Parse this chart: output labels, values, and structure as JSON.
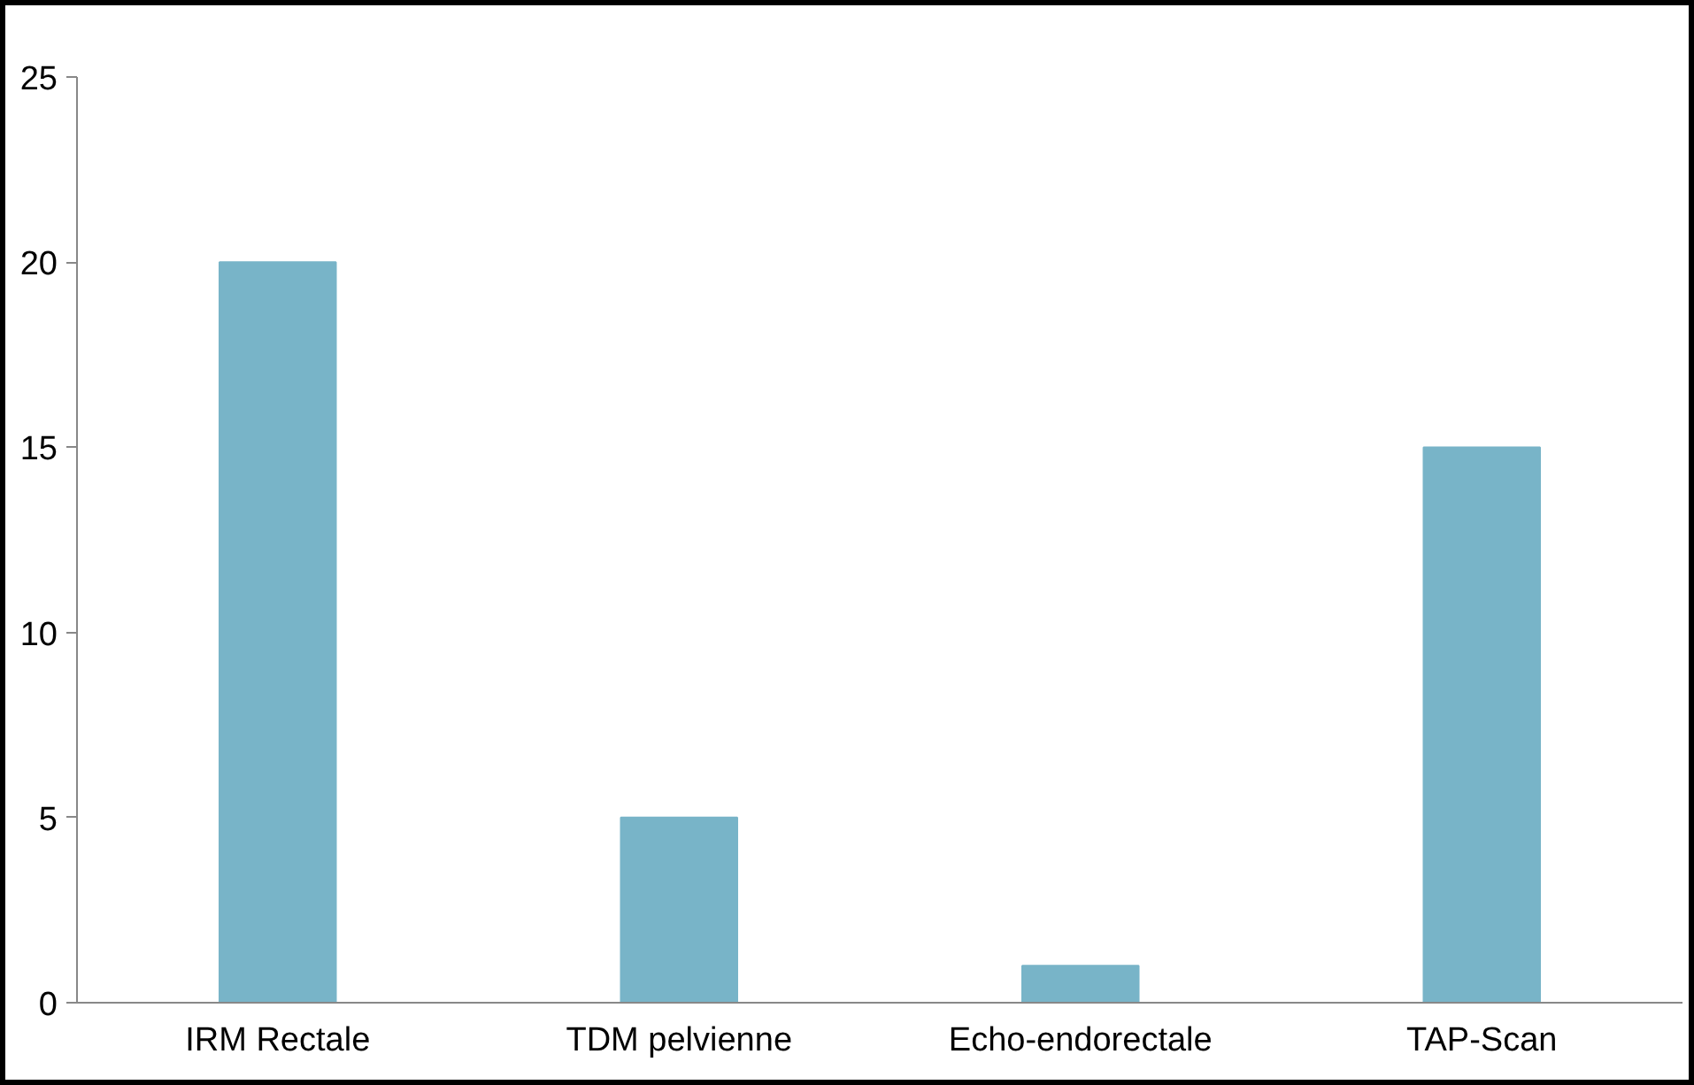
{
  "chart_data": {
    "type": "bar",
    "categories": [
      "IRM Rectale",
      "TDM pelvienne",
      "Echo-endorectale",
      "TAP-Scan"
    ],
    "values": [
      20,
      5,
      1,
      15
    ],
    "color": "#78b4c8",
    "ylim": [
      0,
      25
    ],
    "yticks": [
      0,
      5,
      10,
      15,
      20,
      25
    ],
    "grid": false
  }
}
